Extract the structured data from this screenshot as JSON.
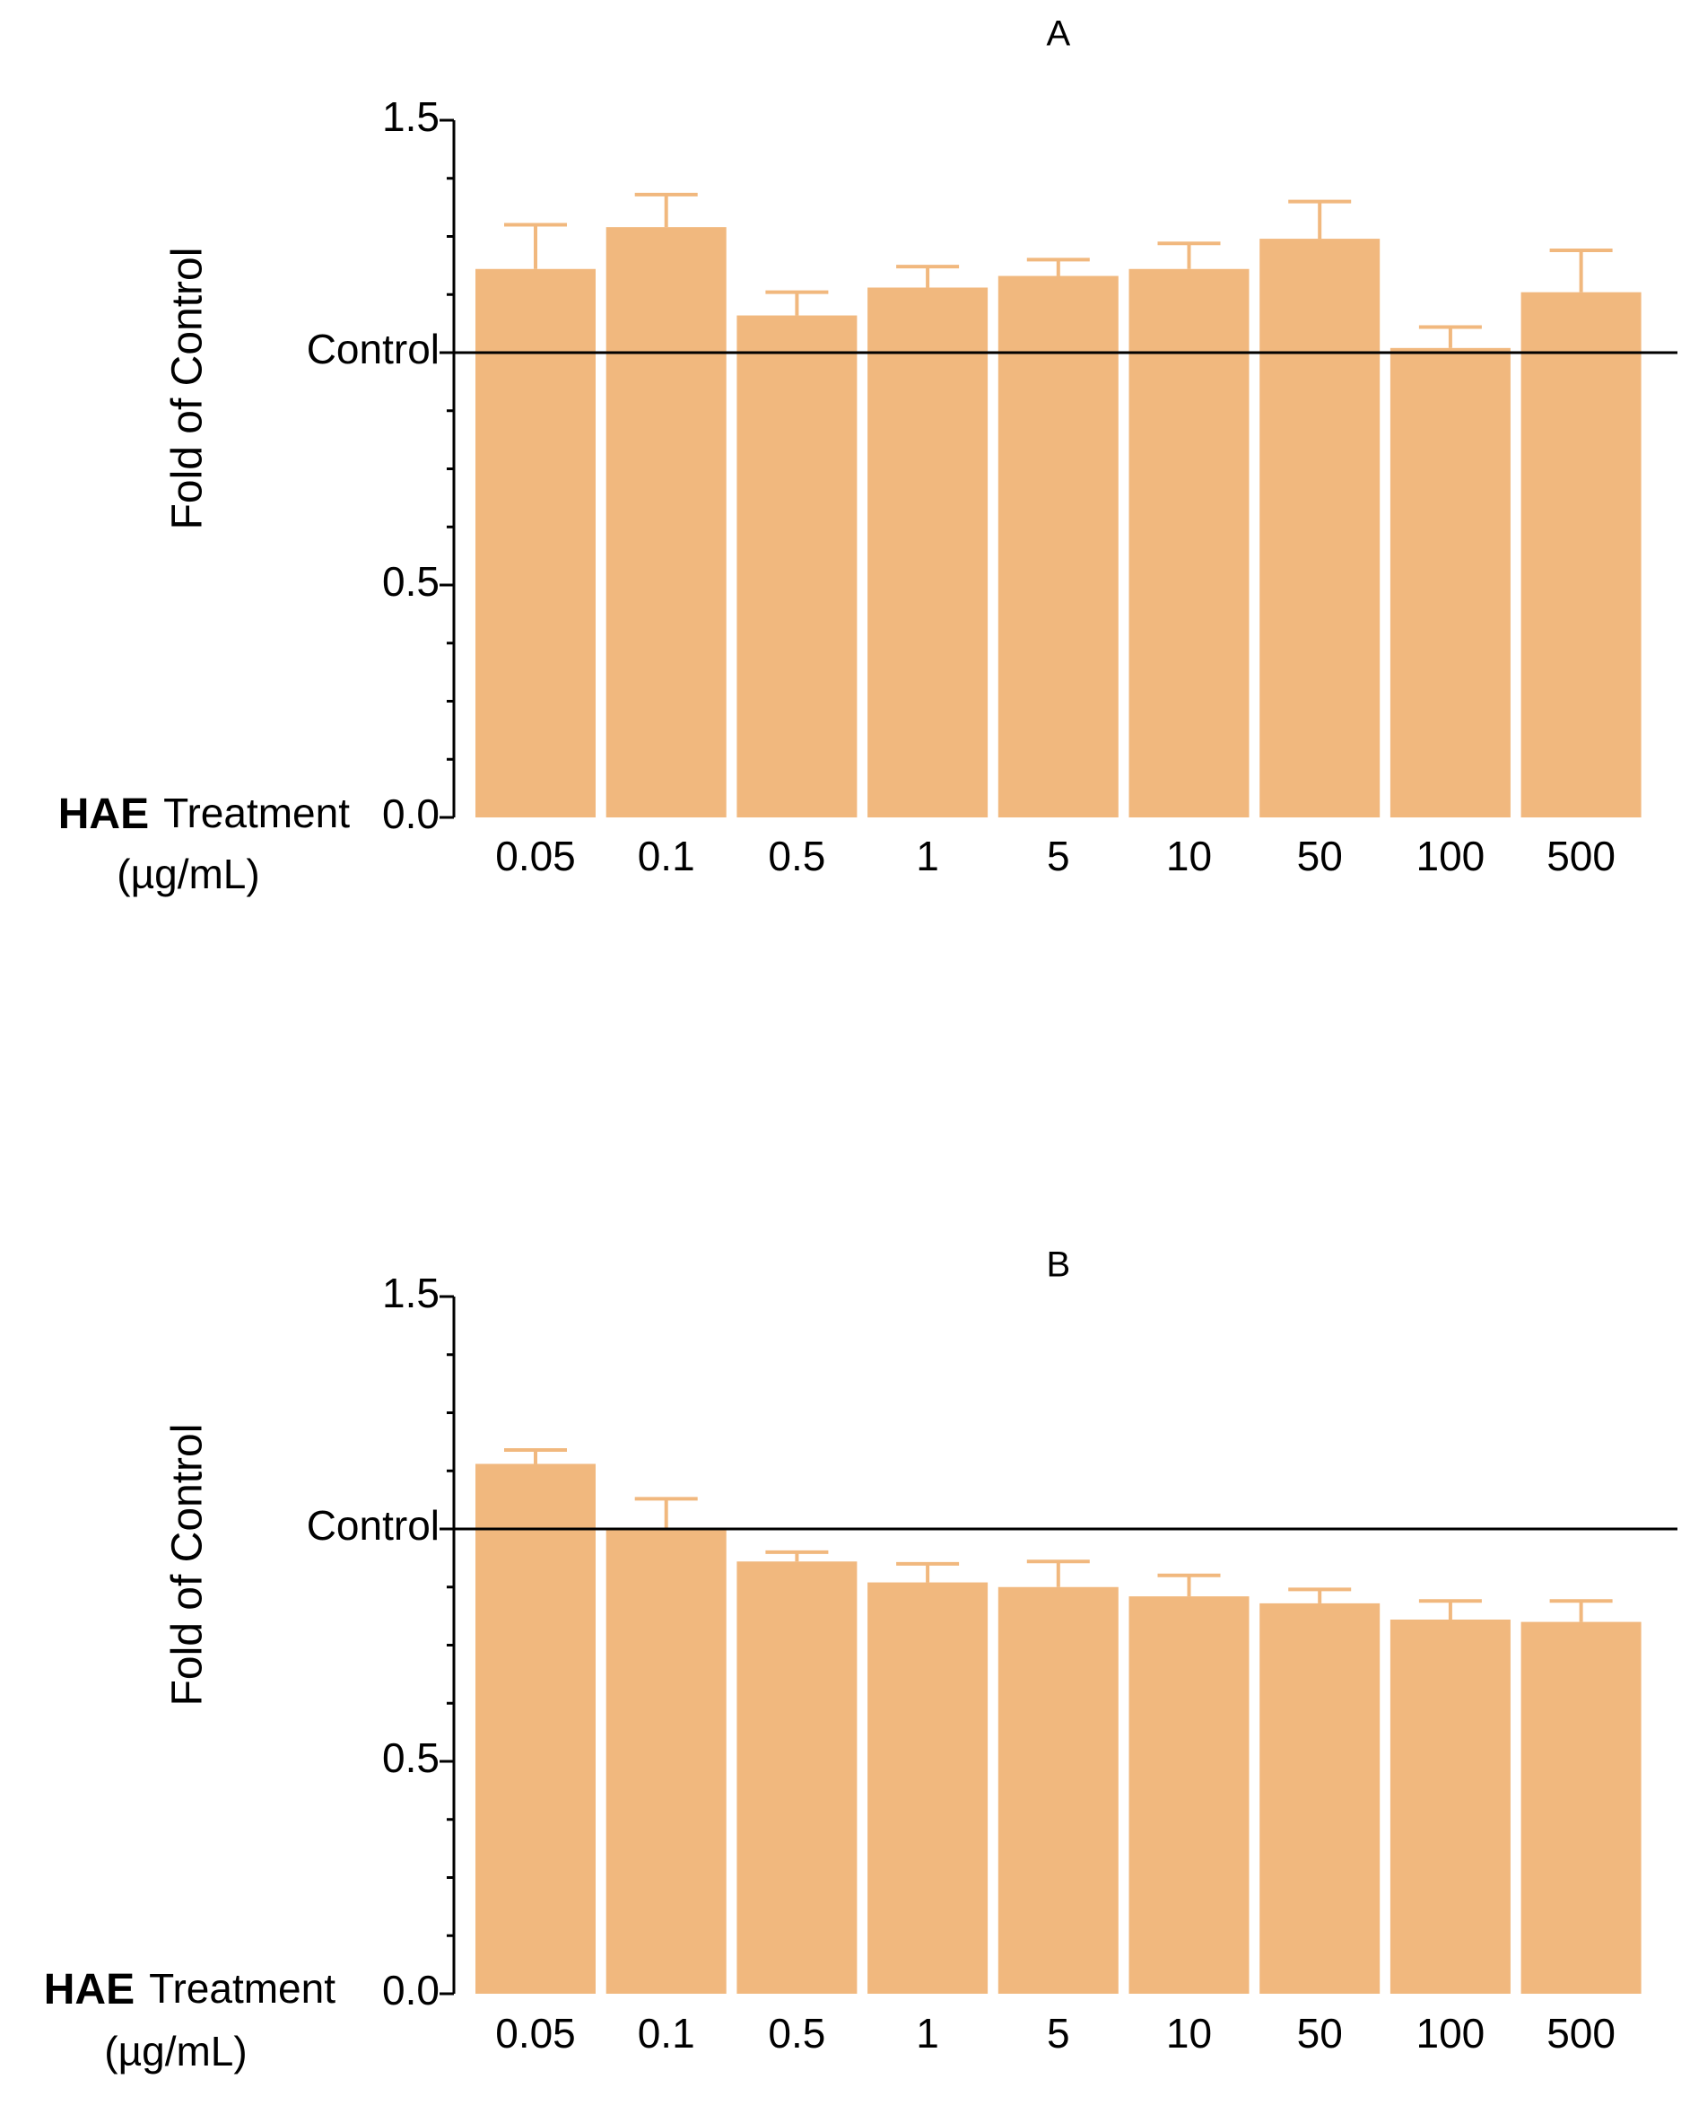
{
  "chart_data": [
    {
      "type": "bar",
      "title": "A",
      "categories": [
        "0.05",
        "0.1",
        "0.5",
        "1",
        "5",
        "10",
        "50",
        "100",
        "500"
      ],
      "series": [
        {
          "name": "Fold of Control",
          "values": [
            1.18,
            1.27,
            1.08,
            1.14,
            1.165,
            1.18,
            1.245,
            1.01,
            1.13
          ],
          "errors": [
            0.095,
            0.07,
            0.05,
            0.045,
            0.035,
            0.055,
            0.08,
            0.045,
            0.09
          ]
        }
      ],
      "reference_line": {
        "value": 1.0,
        "label": "Control"
      },
      "xlabel_strong": "HAE",
      "xlabel_rest": "Treatment",
      "xlabel_units": "(µg/mL)",
      "ylabel": "Fold of Control",
      "ylim": [
        0,
        1.5
      ],
      "yticks": [
        0.0,
        0.5,
        1.5
      ],
      "ytick_labels": [
        "0.0",
        "0.5",
        "1.5"
      ],
      "bar_color": "#F1B87E"
    },
    {
      "type": "bar",
      "title": "B",
      "categories": [
        "0.05",
        "0.1",
        "0.5",
        "1",
        "5",
        "10",
        "50",
        "100",
        "500"
      ],
      "series": [
        {
          "name": "Fold of Control",
          "values": [
            1.14,
            1.0,
            0.93,
            0.885,
            0.875,
            0.855,
            0.84,
            0.805,
            0.8
          ],
          "errors": [
            0.03,
            0.065,
            0.02,
            0.04,
            0.055,
            0.045,
            0.03,
            0.04,
            0.045
          ]
        }
      ],
      "reference_line": {
        "value": 1.0,
        "label": "Control"
      },
      "xlabel_strong": "HAE",
      "xlabel_rest": "Treatment",
      "xlabel_units": "(µg/mL)",
      "ylabel": "Fold of Control",
      "ylim": [
        0,
        1.5
      ],
      "yticks": [
        0.0,
        0.5,
        1.5
      ],
      "ytick_labels": [
        "0.0",
        "0.5",
        "1.5"
      ],
      "bar_color": "#F1B87E"
    }
  ]
}
